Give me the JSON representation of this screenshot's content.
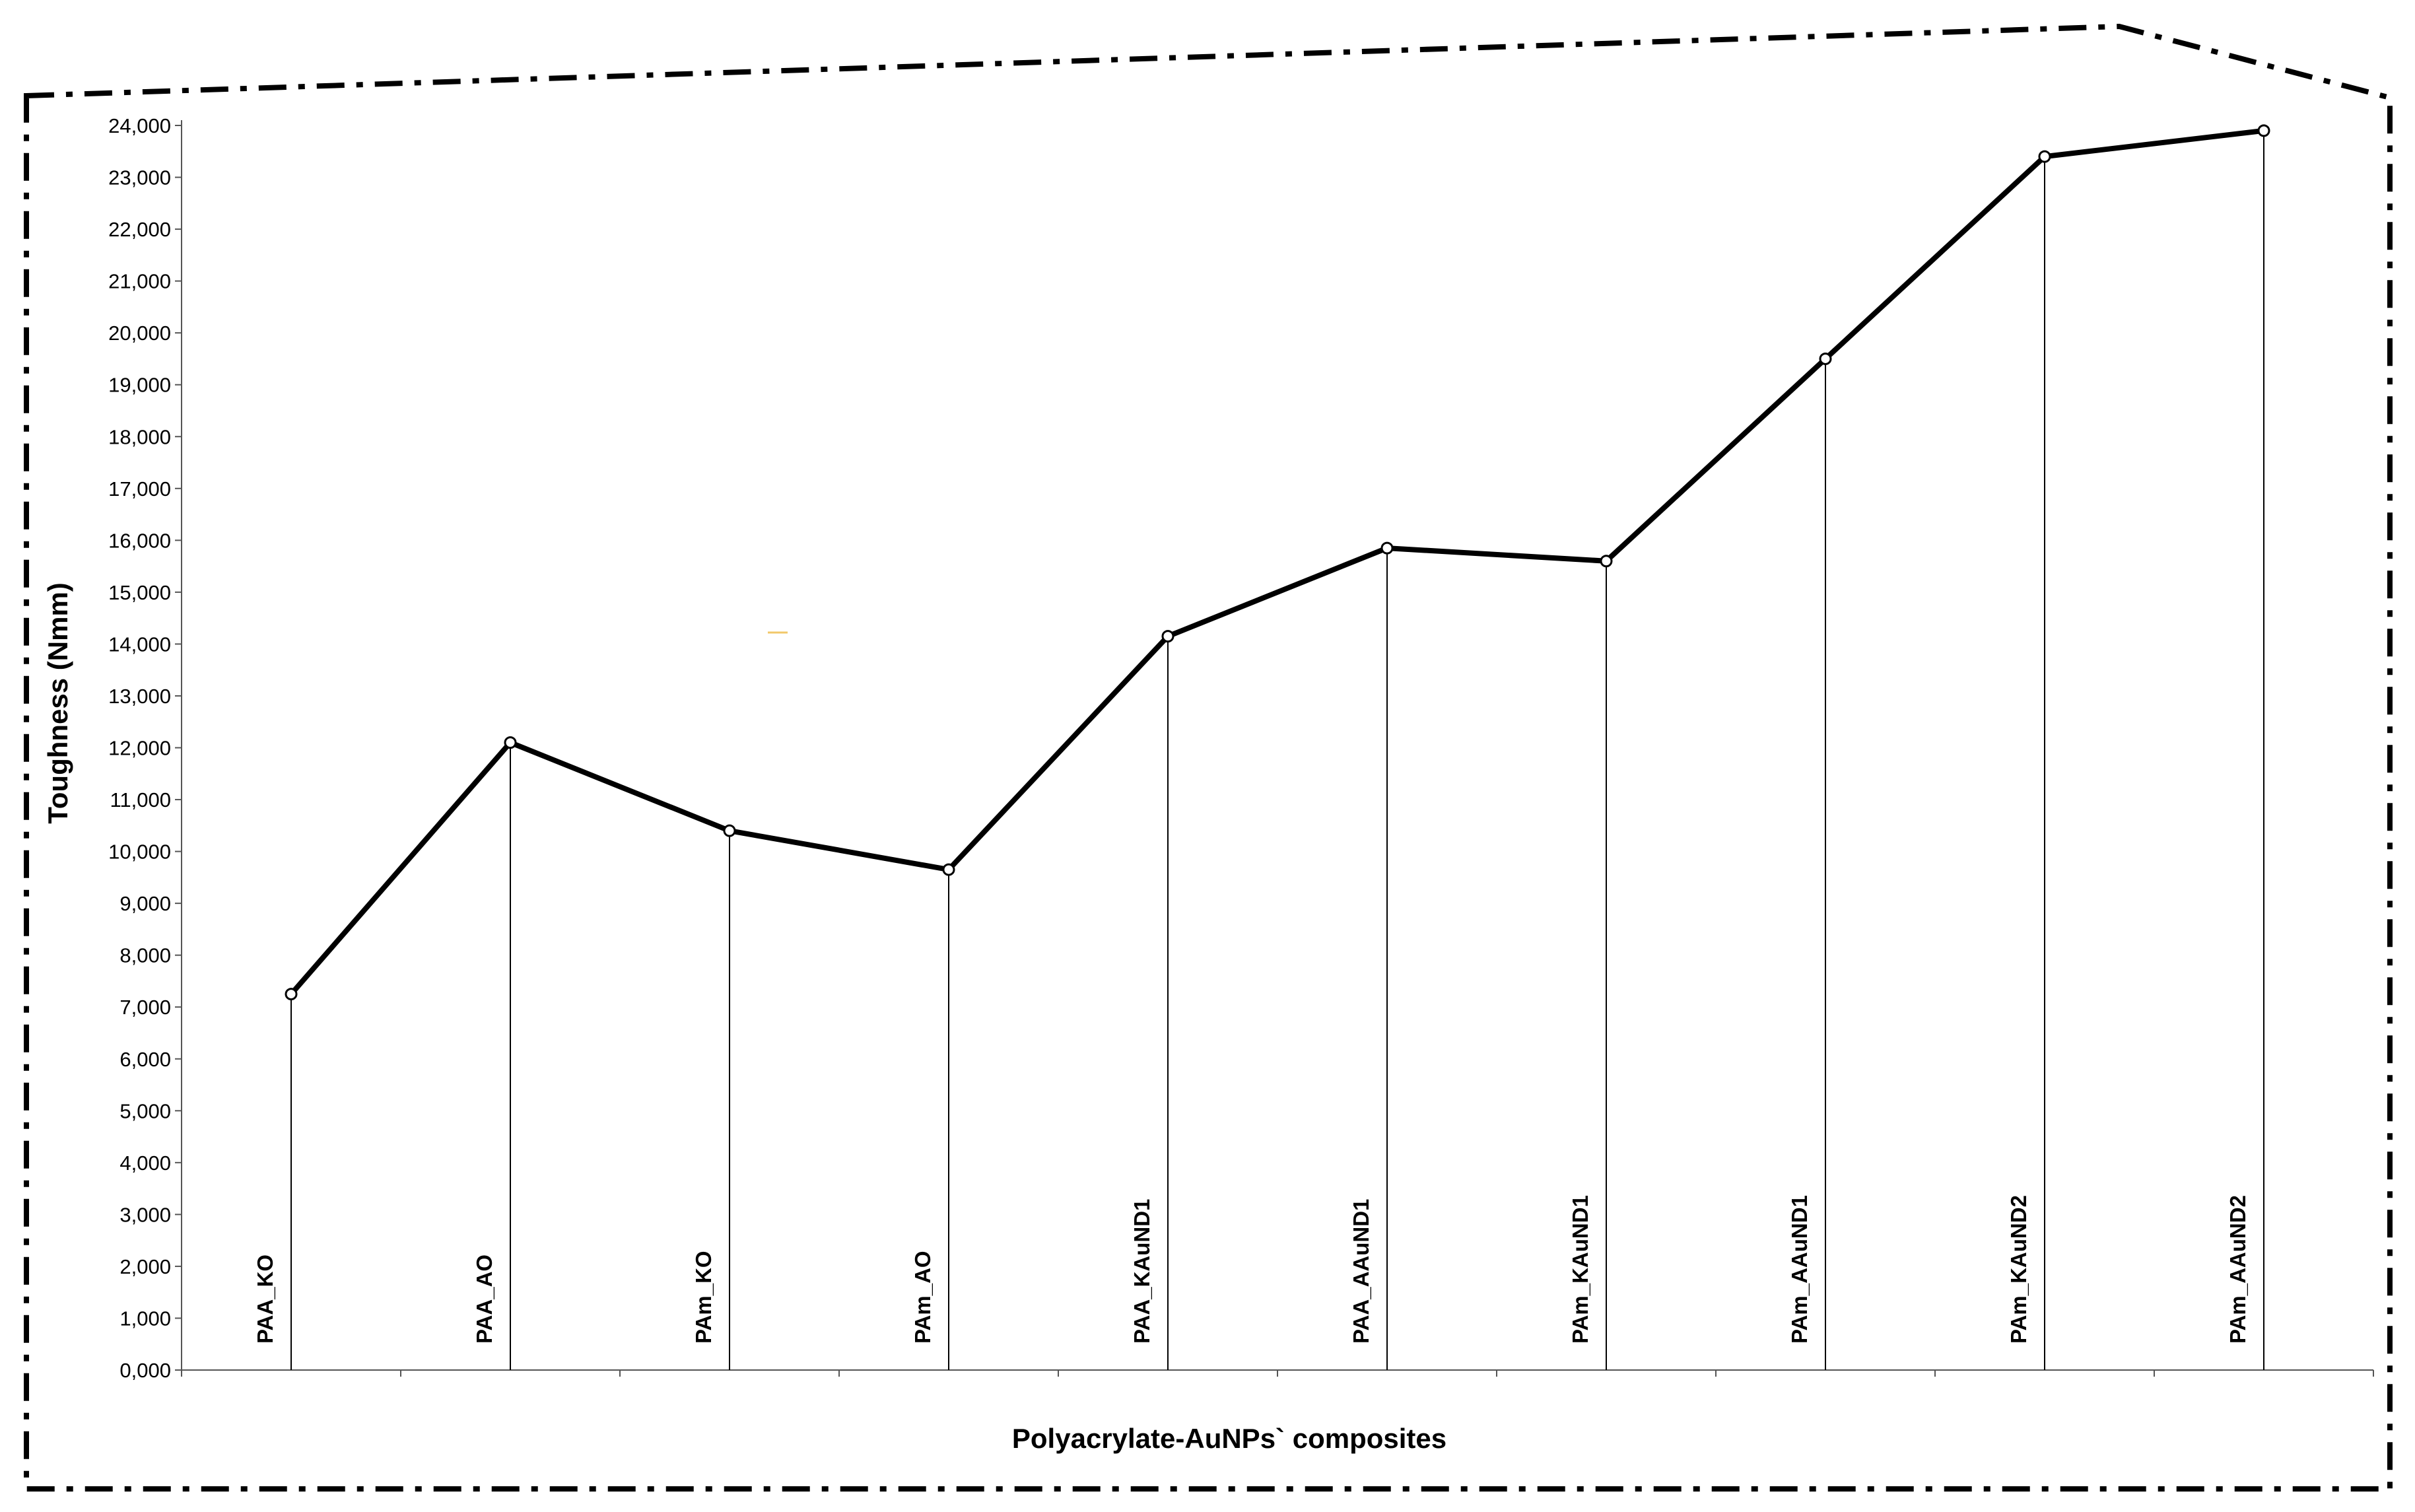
{
  "chart_data": {
    "type": "line",
    "xlabel": "Polyacrylate-AuNPs` composites",
    "ylabel": "Toughness (Nmm)",
    "ylim": [
      0,
      24000
    ],
    "y_ticks": [
      "0,000",
      "1,000",
      "2,000",
      "3,000",
      "4,000",
      "5,000",
      "6,000",
      "7,000",
      "8,000",
      "9,000",
      "10,000",
      "11,000",
      "12,000",
      "13,000",
      "14,000",
      "15,000",
      "16,000",
      "17,000",
      "18,000",
      "19,000",
      "20,000",
      "21,000",
      "22,000",
      "23,000",
      "24,000"
    ],
    "categories": [
      "PAA_KO",
      "PAA_AO",
      "PAm_KO",
      "PAm_AO",
      "PAA_KAuND1",
      "PAA_AAuND1",
      "PAm_KAuND1",
      "PAm_AAuND1",
      "PAm_KAuND2",
      "PAm_AAuND2"
    ],
    "values": [
      7250,
      12100,
      10400,
      9650,
      14150,
      15850,
      15600,
      19500,
      23400,
      23900
    ],
    "drop_lines": true,
    "grid": false,
    "line_color": "#000000"
  }
}
